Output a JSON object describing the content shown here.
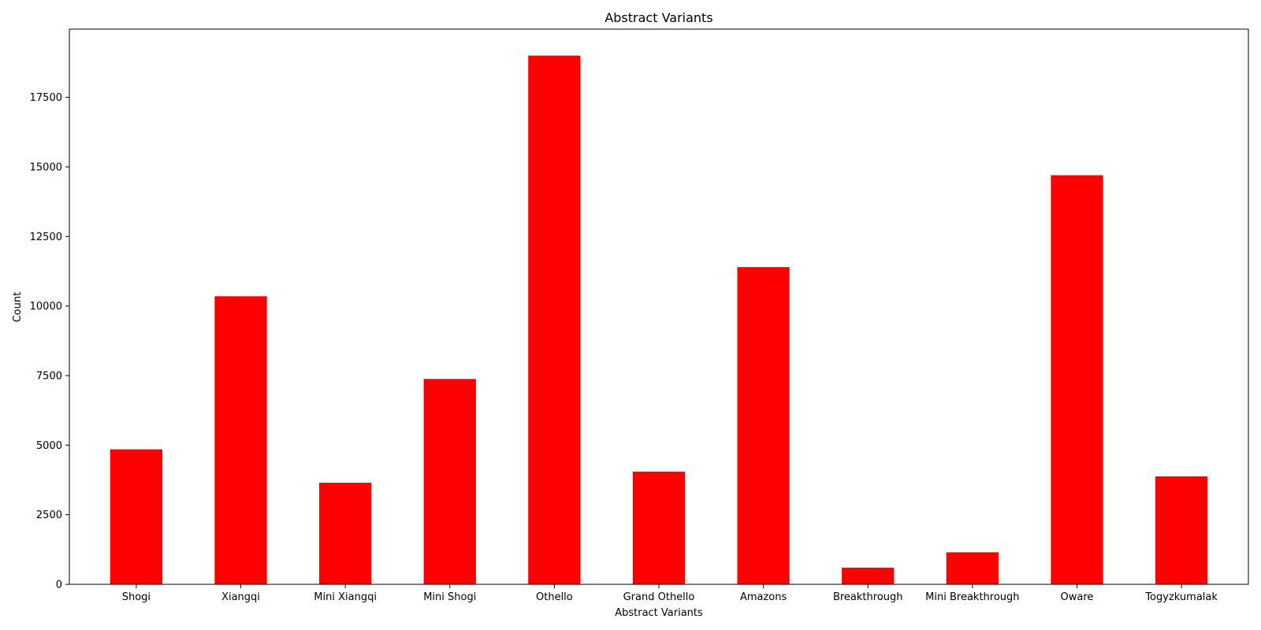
{
  "chart_data": {
    "type": "bar",
    "title": "Abstract Variants",
    "xlabel": "Abstract Variants",
    "ylabel": "Count",
    "categories": [
      "Shogi",
      "Xiangqi",
      "Mini Xiangqi",
      "Mini Shogi",
      "Othello",
      "Grand Othello",
      "Amazons",
      "Breakthrough",
      "Mini Breakthrough",
      "Oware",
      "Togyzkumalak"
    ],
    "values": [
      4850,
      10350,
      3650,
      7380,
      19000,
      4050,
      11400,
      600,
      1150,
      14700,
      3880
    ],
    "ylim": [
      0,
      19950
    ],
    "yticks": [
      0,
      2500,
      5000,
      7500,
      10000,
      12500,
      15000,
      17500
    ],
    "bar_color": "#ff0000",
    "grid": false,
    "legend": "none"
  }
}
